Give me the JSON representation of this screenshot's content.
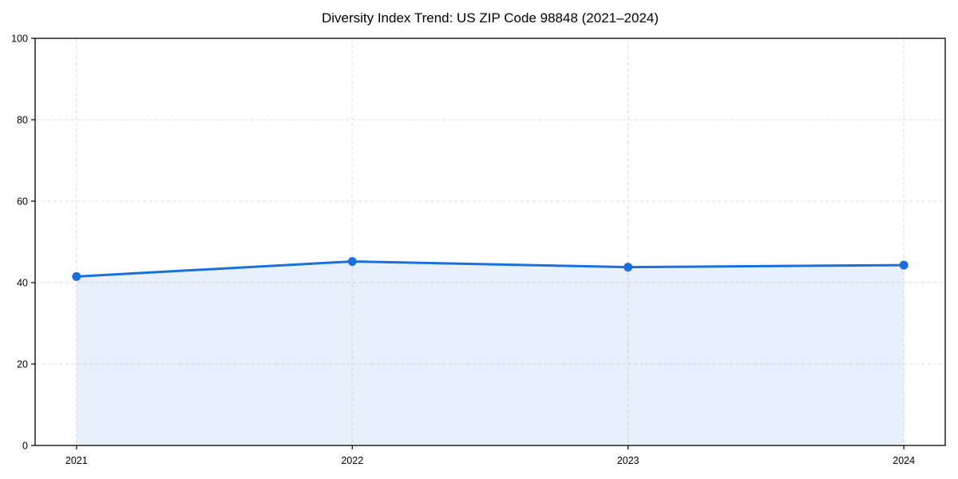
{
  "figure": {
    "background_color": "#ffffff"
  },
  "chart_data": {
    "type": "line",
    "title": "Diversity Index Trend: US ZIP Code 98848 (2021–2024)",
    "x": [
      2021,
      2022,
      2023,
      2024
    ],
    "series": [
      {
        "name": "Diversity Index",
        "values": [
          41.5,
          45.2,
          43.8,
          44.3
        ],
        "color": "#1a6fdf",
        "marker": "circle",
        "area_fill": true,
        "area_opacity": 0.1
      }
    ],
    "xlabel": "",
    "ylabel": "",
    "xlim": [
      2020.85,
      2024.15
    ],
    "ylim": [
      0,
      100
    ],
    "x_ticks": [
      "2021",
      "2022",
      "2023",
      "2024"
    ],
    "x_tick_values": [
      2021,
      2022,
      2023,
      2024
    ],
    "y_ticks": [
      "0",
      "20",
      "40",
      "60",
      "80",
      "100"
    ],
    "y_tick_values": [
      0,
      20,
      40,
      60,
      80,
      100
    ],
    "grid": true,
    "grid_style": "dashed",
    "grid_color": "#dcdcdc",
    "legend": "none",
    "spine_color": "#000000",
    "tick_label_color": "#000000",
    "line_width": 3,
    "marker_radius": 5.5
  }
}
